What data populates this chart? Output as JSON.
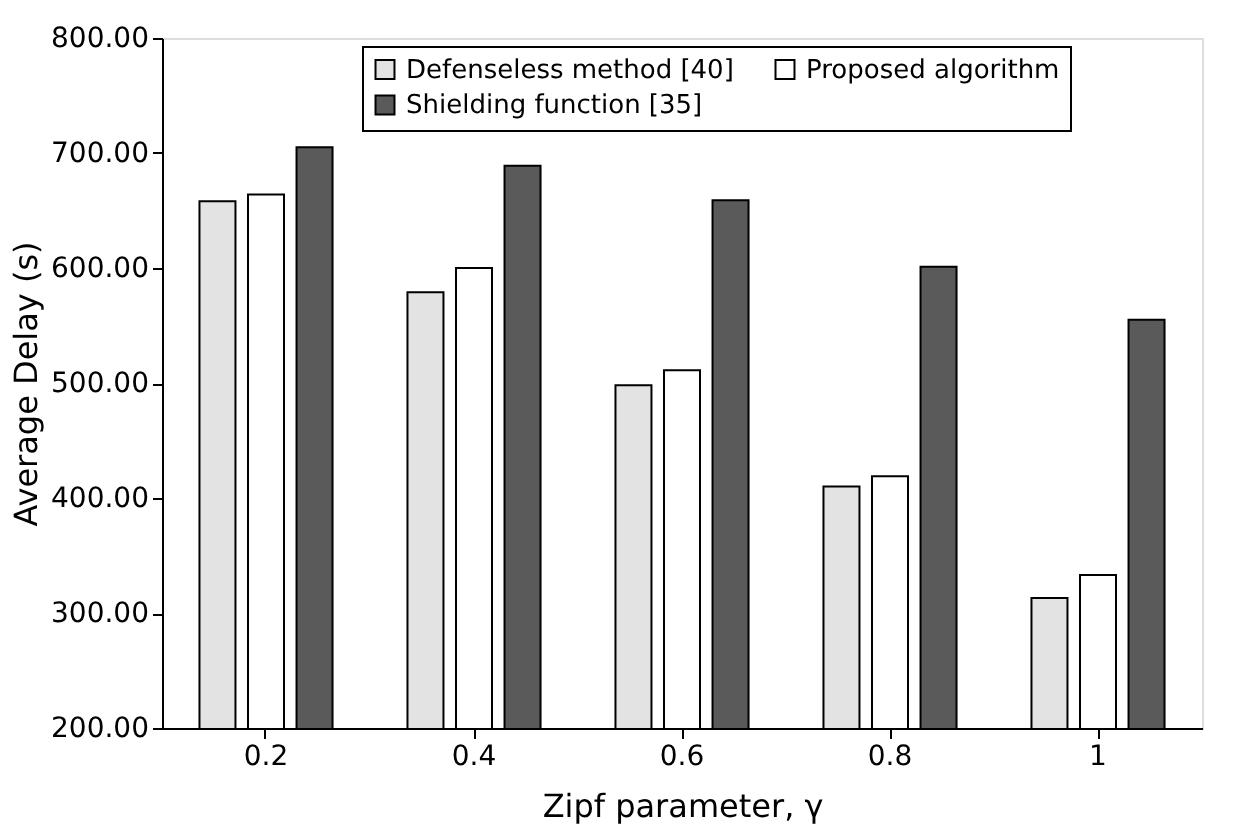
{
  "chart_data": {
    "type": "bar",
    "xlabel": "Zipf parameter, γ",
    "ylabel": "Average Delay (s)",
    "categories": [
      "0.2",
      "0.4",
      "0.6",
      "0.8",
      "1"
    ],
    "series": [
      {
        "name": "Defenseless method [40]",
        "color": "#e3e3e3",
        "values": [
          658,
          579,
          498,
          410,
          313
        ]
      },
      {
        "name": "Proposed algorithm",
        "color": "#ffffff",
        "values": [
          664,
          600,
          511,
          419,
          333
        ]
      },
      {
        "name": "Shielding function [35]",
        "color": "#5a5a5a",
        "values": [
          705,
          689,
          659,
          601,
          555
        ]
      }
    ],
    "ylim": [
      200,
      800
    ],
    "yticks": [
      {
        "value": 200,
        "label": "200.00"
      },
      {
        "value": 300,
        "label": "300.00"
      },
      {
        "value": 400,
        "label": "400.00"
      },
      {
        "value": 500,
        "label": "500.00"
      },
      {
        "value": 600,
        "label": "600.00"
      },
      {
        "value": 700,
        "label": "700.00"
      },
      {
        "value": 800,
        "label": "800.00"
      }
    ],
    "grid": false,
    "legend": "top right"
  }
}
